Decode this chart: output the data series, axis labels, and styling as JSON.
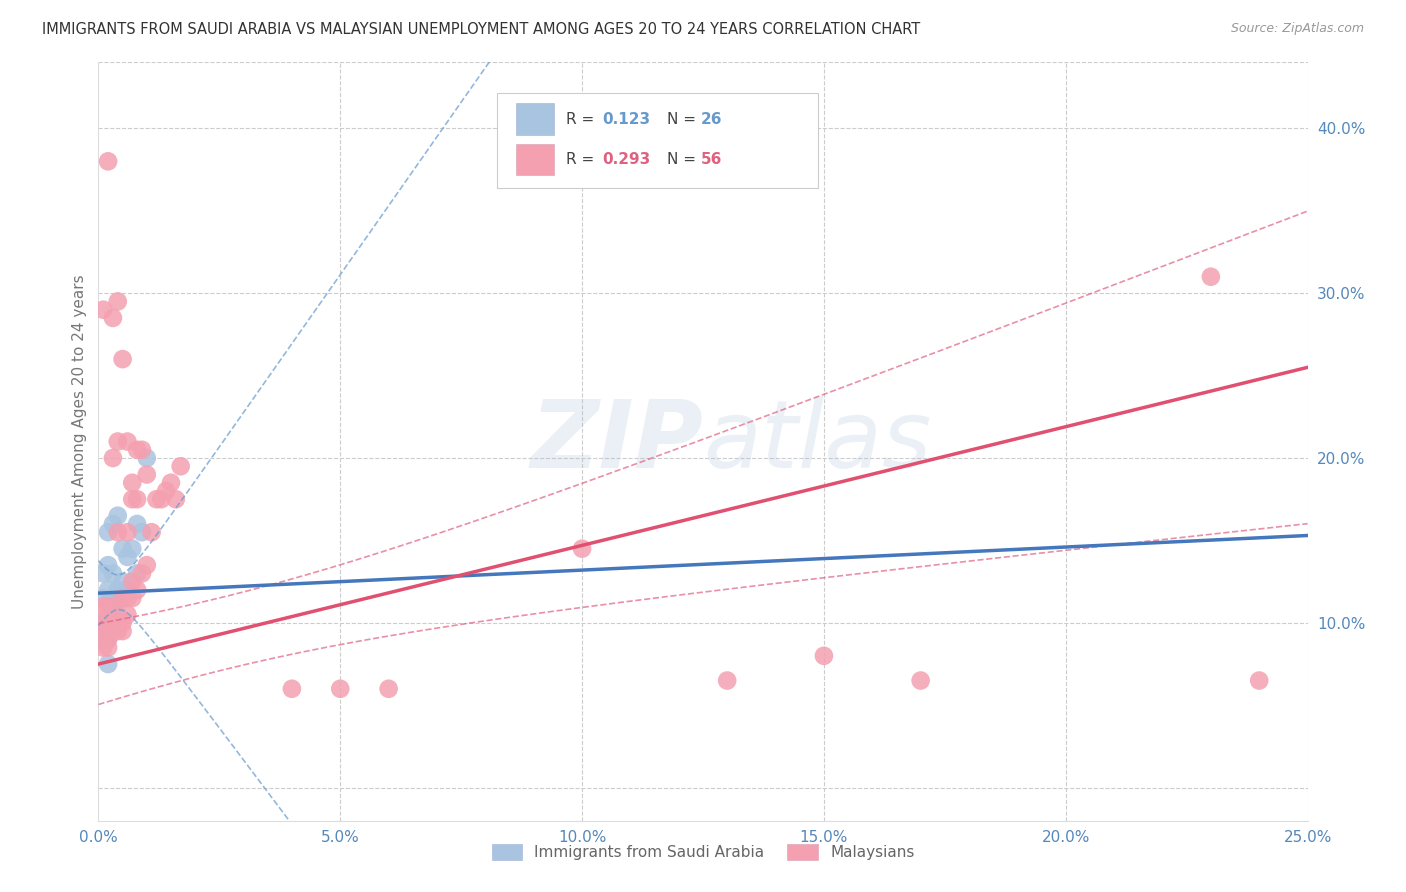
{
  "title": "IMMIGRANTS FROM SAUDI ARABIA VS MALAYSIAN UNEMPLOYMENT AMONG AGES 20 TO 24 YEARS CORRELATION CHART",
  "source": "Source: ZipAtlas.com",
  "ylabel": "Unemployment Among Ages 20 to 24 years",
  "watermark": "ZIPAtlas",
  "xlim": [
    0.0,
    0.25
  ],
  "ylim": [
    -0.02,
    0.44
  ],
  "xticks": [
    0.0,
    0.05,
    0.1,
    0.15,
    0.2,
    0.25
  ],
  "yticks_right": [
    0.1,
    0.2,
    0.3,
    0.4
  ],
  "series1_label": "Immigrants from Saudi Arabia",
  "series1_color": "#a8c4e0",
  "series1_R": 0.123,
  "series1_N": 26,
  "series2_label": "Malaysians",
  "series2_color": "#f4a0b0",
  "series2_R": 0.293,
  "series2_N": 56,
  "line1_color": "#4477bb",
  "line2_color": "#e05070",
  "ci1_color": "#6699cc",
  "ci2_color": "#e06080",
  "legend_R1_color": "#6699cc",
  "legend_R2_color": "#e06080",
  "axis_color": "#5588bb",
  "grid_color": "#cccccc",
  "background_color": "#ffffff",
  "scatter1_x": [
    0.001,
    0.001,
    0.001,
    0.001,
    0.002,
    0.002,
    0.002,
    0.002,
    0.002,
    0.003,
    0.003,
    0.003,
    0.003,
    0.004,
    0.004,
    0.004,
    0.005,
    0.005,
    0.005,
    0.006,
    0.006,
    0.007,
    0.008,
    0.008,
    0.009,
    0.01
  ],
  "scatter1_y": [
    0.09,
    0.1,
    0.115,
    0.13,
    0.075,
    0.09,
    0.12,
    0.135,
    0.155,
    0.1,
    0.11,
    0.13,
    0.16,
    0.105,
    0.12,
    0.165,
    0.115,
    0.125,
    0.145,
    0.12,
    0.14,
    0.145,
    0.13,
    0.16,
    0.155,
    0.2
  ],
  "scatter2_x": [
    0.001,
    0.001,
    0.001,
    0.001,
    0.001,
    0.002,
    0.002,
    0.002,
    0.002,
    0.002,
    0.002,
    0.003,
    0.003,
    0.003,
    0.003,
    0.003,
    0.004,
    0.004,
    0.004,
    0.004,
    0.004,
    0.005,
    0.005,
    0.005,
    0.005,
    0.006,
    0.006,
    0.006,
    0.006,
    0.007,
    0.007,
    0.007,
    0.007,
    0.008,
    0.008,
    0.008,
    0.009,
    0.009,
    0.01,
    0.01,
    0.011,
    0.012,
    0.013,
    0.014,
    0.015,
    0.016,
    0.017,
    0.04,
    0.05,
    0.06,
    0.1,
    0.13,
    0.15,
    0.17,
    0.23,
    0.24
  ],
  "scatter2_y": [
    0.085,
    0.095,
    0.1,
    0.11,
    0.29,
    0.085,
    0.09,
    0.1,
    0.105,
    0.11,
    0.38,
    0.095,
    0.1,
    0.11,
    0.2,
    0.285,
    0.095,
    0.1,
    0.155,
    0.21,
    0.295,
    0.095,
    0.1,
    0.115,
    0.26,
    0.105,
    0.115,
    0.155,
    0.21,
    0.115,
    0.125,
    0.175,
    0.185,
    0.12,
    0.175,
    0.205,
    0.13,
    0.205,
    0.135,
    0.19,
    0.155,
    0.175,
    0.175,
    0.18,
    0.185,
    0.175,
    0.195,
    0.06,
    0.06,
    0.06,
    0.145,
    0.065,
    0.08,
    0.065,
    0.31,
    0.065
  ]
}
